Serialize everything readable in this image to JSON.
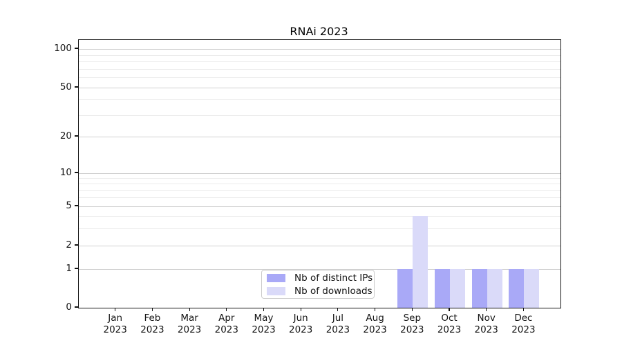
{
  "figure": {
    "title": "RNAi 2023",
    "background_color": "#ffffff",
    "axis_color": "#111111",
    "grid_major_color": "#d0d0d0",
    "grid_minor_color": "#ebebeb"
  },
  "legend": {
    "items": [
      {
        "label": "Nb of distinct IPs",
        "color": "#a9a9f7"
      },
      {
        "label": "Nb of downloads",
        "color": "#dadaf9"
      }
    ]
  },
  "y_axis": {
    "tick_labels": [
      "100",
      "50",
      "20",
      "10",
      "5",
      "2",
      "1",
      "0"
    ]
  },
  "x_axis": {
    "tick_labels": [
      "Jan 2023",
      "Feb 2023",
      "Mar 2023",
      "Apr 2023",
      "May 2023",
      "Jun 2023",
      "Jul 2023",
      "Aug 2023",
      "Sep 2023",
      "Oct 2023",
      "Nov 2023",
      "Dec 2023"
    ]
  },
  "chart_data": {
    "type": "bar",
    "title": "RNAi 2023",
    "xlabel": "",
    "ylabel": "",
    "categories": [
      "Jan 2023",
      "Feb 2023",
      "Mar 2023",
      "Apr 2023",
      "May 2023",
      "Jun 2023",
      "Jul 2023",
      "Aug 2023",
      "Sep 2023",
      "Oct 2023",
      "Nov 2023",
      "Dec 2023"
    ],
    "series": [
      {
        "name": "Nb of distinct IPs",
        "color": "#a9a9f7",
        "values": [
          0,
          0,
          0,
          0,
          0,
          0,
          0,
          0,
          1,
          1,
          1,
          1
        ]
      },
      {
        "name": "Nb of downloads",
        "color": "#dadaf9",
        "values": [
          0,
          0,
          0,
          0,
          0,
          0,
          0,
          0,
          4,
          1,
          1,
          1
        ]
      }
    ],
    "yticks_major": [
      0,
      1,
      2,
      5,
      10,
      20,
      50,
      100
    ],
    "yticks_minor": [
      3,
      4,
      6,
      7,
      8,
      9,
      30,
      40,
      60,
      70,
      80,
      90
    ],
    "ylim": [
      0,
      115
    ],
    "yscale": "log-like above 1, linear 0-1",
    "grid": "horizontal major and minor gridlines",
    "legend_position": "lower center, inside axes",
    "bar_layout": "grouped pairs centered on month tick"
  }
}
